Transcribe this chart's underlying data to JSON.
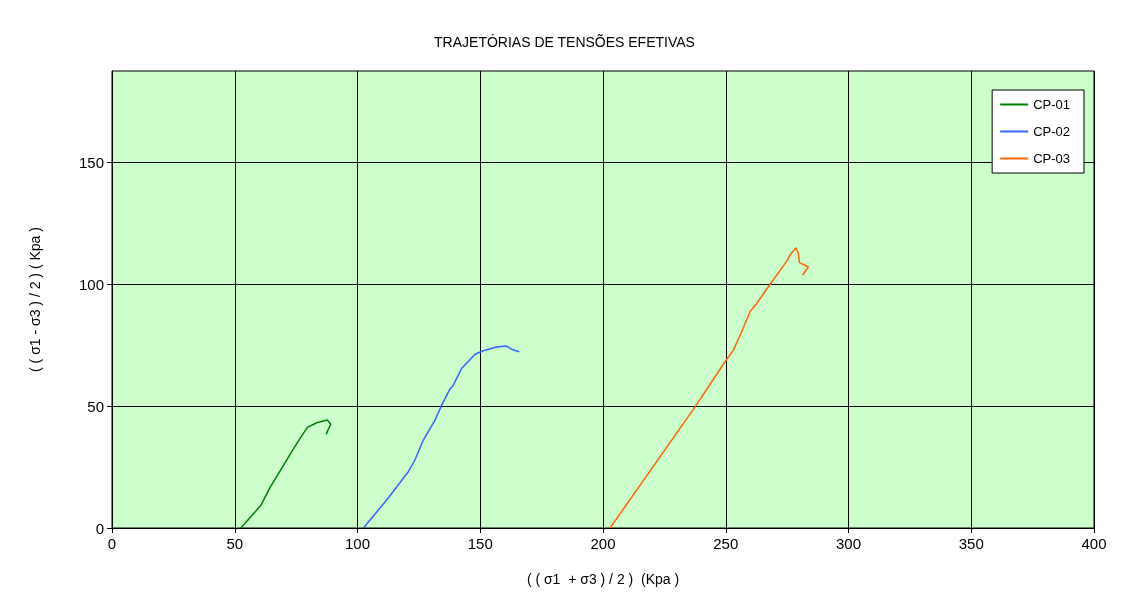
{
  "chart_data": {
    "type": "line",
    "title": "TRAJETÓRIAS DE TENSÕES EFETIVAS",
    "xlabel": "( ( σ1  + σ3 ) / 2 )  (Kpa )",
    "ylabel": "( ( σ1 - σ3 ) / 2 ) ( Kpa )",
    "xlim": [
      0,
      400
    ],
    "xticks": [
      0,
      50,
      100,
      150,
      200,
      250,
      300,
      350,
      400
    ],
    "ylim": [
      0,
      187.5
    ],
    "yticks": [
      0,
      50,
      100,
      150
    ],
    "grid": true,
    "legend": "top right",
    "marker": "none",
    "line_style": "solid",
    "series": [
      {
        "name": "CP-01",
        "color": "#008000",
        "x": [
          52.5,
          60.7,
          64.4,
          69.1,
          73.2,
          76.6,
          79.6,
          83.4,
          87.7,
          89.1,
          87.2
        ],
        "values": [
          0,
          9.4,
          16.7,
          24.5,
          31.3,
          36.8,
          41.3,
          43.2,
          44.3,
          42.6,
          38.4
        ]
      },
      {
        "name": "CP-02",
        "color": "#3366ff",
        "x": [
          102.4,
          111.9,
          120.7,
          123.4,
          126.8,
          131.6,
          134.3,
          137.4,
          139.0,
          142.4,
          147.9,
          151.2,
          156.7,
          160.5,
          163.5,
          165.9
        ],
        "values": [
          0,
          11.5,
          23.1,
          27.9,
          36.1,
          44.3,
          50.4,
          56.6,
          58.6,
          65.4,
          71.3,
          72.7,
          74.3,
          74.7,
          73.0,
          72.3
        ]
      },
      {
        "name": "CP-03",
        "color": "#ff6600",
        "x": [
          202.9,
          237.5,
          249.7,
          253.1,
          256.5,
          259.9,
          262.6,
          268.0,
          274.8,
          276.6,
          278.6,
          279.6,
          280.0,
          282.3,
          283.6,
          281.3
        ],
        "values": [
          0,
          49.7,
          68.2,
          73.0,
          80.5,
          88.7,
          92.1,
          99.9,
          109.4,
          112.6,
          114.9,
          112.6,
          108.9,
          107.8,
          107.1,
          103.7
        ]
      }
    ]
  }
}
